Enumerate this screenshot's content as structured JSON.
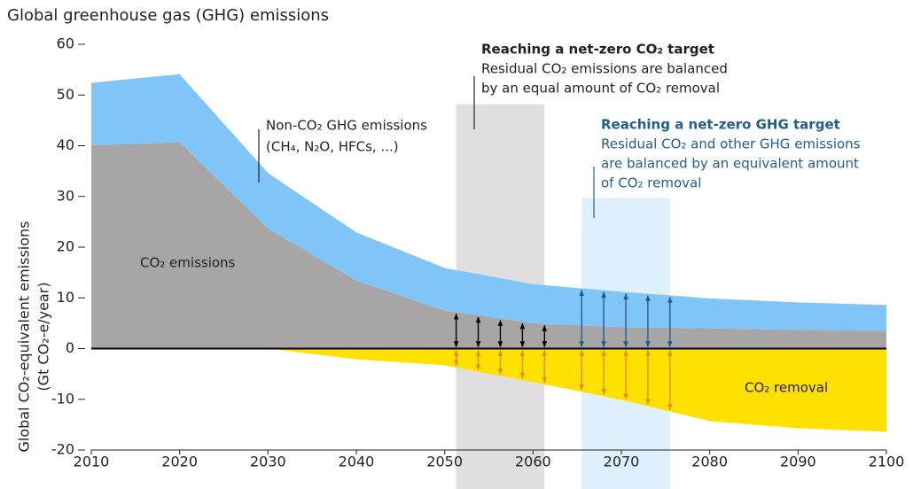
{
  "chart_data": {
    "type": "area",
    "title": "Global greenhouse gas (GHG) emissions",
    "y_label": [
      "Global CO₂-equivalent emissions",
      "(Gt CO₂-e/year)"
    ],
    "x": [
      2010,
      2020,
      2030,
      2040,
      2050,
      2060,
      2070,
      2080,
      2090,
      2100
    ],
    "series": [
      {
        "name": "CO₂ emissions",
        "color": "#a8a5a6",
        "stack": "up",
        "values": [
          40.1,
          40.7,
          23.7,
          13.4,
          7.5,
          5.0,
          4.2,
          4.0,
          3.7,
          3.5
        ]
      },
      {
        "name": "Non-CO₂ GHG emissions",
        "color": "#80c5f8",
        "stack": "up",
        "values": [
          12.3,
          13.4,
          10.9,
          9.5,
          8.4,
          7.7,
          7.0,
          5.9,
          5.4,
          5.1
        ]
      },
      {
        "name": "CO₂ removal",
        "color": "#ffe100",
        "stack": "down",
        "values": [
          0,
          0,
          0,
          -2.1,
          -3.3,
          -6.6,
          -10.1,
          -14.3,
          -15.7,
          -16.4
        ]
      }
    ],
    "series_note": "(CH₄, N₂O, HFCs, ...)",
    "xlim": [
      2010,
      2100
    ],
    "ylim": [
      -20,
      60
    ],
    "xticks": [
      2010,
      2020,
      2030,
      2040,
      2050,
      2060,
      2070,
      2080,
      2090,
      2100
    ],
    "yticks": [
      60,
      50,
      40,
      30,
      20,
      10,
      0,
      -10,
      -20
    ],
    "highlights": [
      {
        "x": [
          2051.3,
          2061.3
        ],
        "top": 48.2,
        "color": "#dcd8d9",
        "up_color": "#000000",
        "down_color": "#e0901a",
        "up_to": 1,
        "title": "Reaching a net-zero CO₂ target",
        "lines": [
          "Residual CO₂ emissions are balanced",
          "by an equal amount of CO₂ removal"
        ]
      },
      {
        "x": [
          2065.5,
          2075.5
        ],
        "top": 29.7,
        "color": "#d8edfc",
        "up_color": "#1f5f8b",
        "down_color": "#e0901a",
        "up_to": 2,
        "title": "Reaching a net-zero GHG target",
        "lines": [
          "Residual CO₂ and other GHG emissions",
          "are balanced by an equivalent amount",
          "of CO₂ removal"
        ]
      }
    ]
  }
}
